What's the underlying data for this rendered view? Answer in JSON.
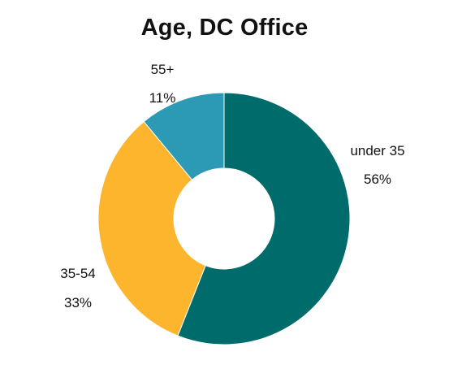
{
  "chart_data": {
    "type": "pie",
    "title": "Age, DC Office",
    "donut": true,
    "slices": [
      {
        "label": "under 35",
        "value_label": "56%",
        "value": 56,
        "color": "#006B6B"
      },
      {
        "label": "35-54",
        "value_label": "33%",
        "value": 33,
        "color": "#FDB52D"
      },
      {
        "label": "55+",
        "value_label": "11%",
        "value": 11,
        "color": "#2C9AB5"
      }
    ]
  }
}
